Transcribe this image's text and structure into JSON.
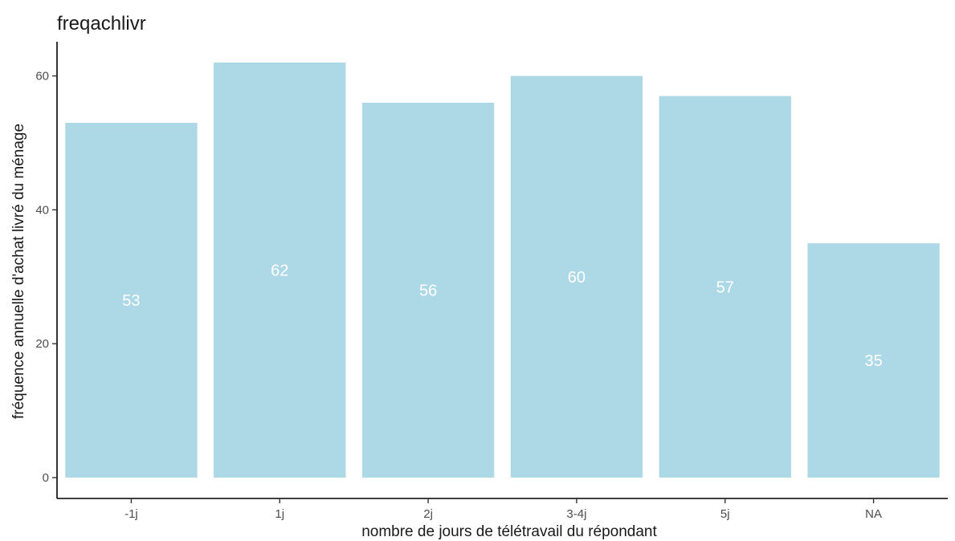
{
  "chart_data": {
    "type": "bar",
    "title": "freqachlivr",
    "xlabel": "nombre de jours de télétravail du répondant",
    "ylabel": "fréquence annuelle d'achat livré du ménage",
    "categories": [
      "-1j",
      "1j",
      "2j",
      "3-4j",
      "5j",
      "NA"
    ],
    "values": [
      53,
      62,
      56,
      60,
      57,
      35
    ],
    "data_labels": [
      "53",
      "62",
      "56",
      "60",
      "57",
      "35"
    ],
    "yticks": [
      0,
      20,
      40,
      60
    ],
    "ytick_labels": [
      "0",
      "20",
      "40",
      "60"
    ],
    "ylim": [
      0,
      65
    ],
    "grid": false,
    "bar_color": "#ADD8E6",
    "label_color": "#FFFFFF"
  }
}
